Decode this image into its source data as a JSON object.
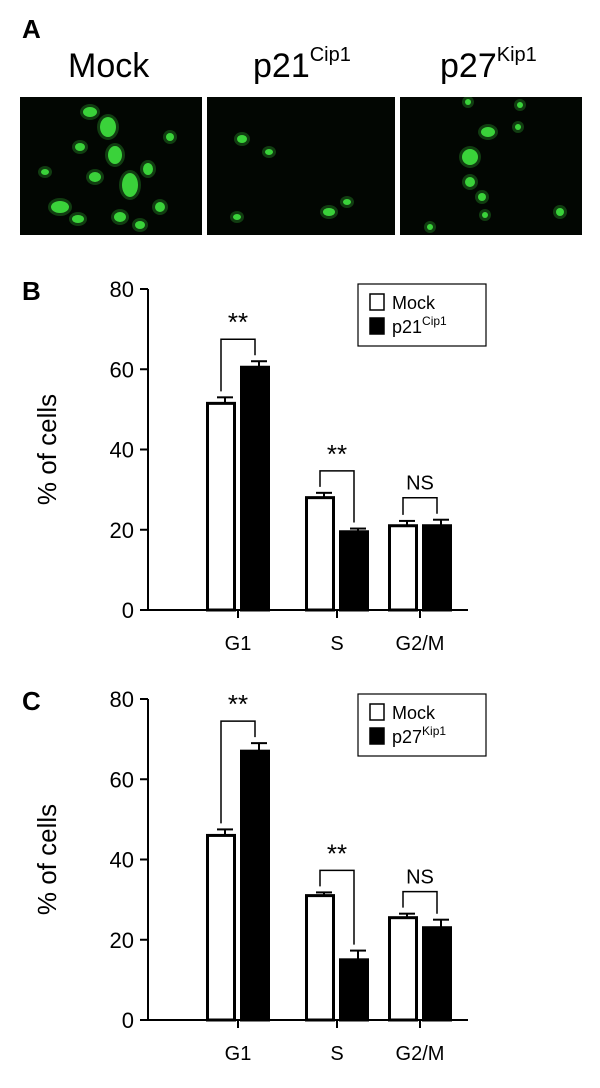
{
  "panel_a": {
    "letter": "A",
    "images": [
      {
        "label_main": "Mock",
        "label_sup": ""
      },
      {
        "label_main": "p21",
        "label_sup": "Cip1"
      },
      {
        "label_main": "p27",
        "label_sup": "Kip1"
      }
    ],
    "cell_color": "#3fe23f"
  },
  "chart_data": [
    {
      "type": "bar",
      "panel": "B",
      "categories": [
        "G1",
        "S",
        "G2/M"
      ],
      "ylabel": "% of cells",
      "ylim": [
        0,
        80
      ],
      "yticks": [
        0,
        20,
        40,
        60,
        80
      ],
      "legend_position": "top-right",
      "series": [
        {
          "name": "Mock",
          "name_sup": "",
          "fill": "#ffffff",
          "values": [
            51.5,
            28,
            21
          ],
          "errors": [
            1.5,
            1.2,
            1.2
          ]
        },
        {
          "name": "p21",
          "name_sup": "Cip1",
          "fill": "#000000",
          "values": [
            60.5,
            19.5,
            21
          ],
          "errors": [
            1.5,
            0.8,
            1.5
          ]
        }
      ],
      "significance": [
        "**",
        "**",
        "NS"
      ]
    },
    {
      "type": "bar",
      "panel": "C",
      "categories": [
        "G1",
        "S",
        "G2/M"
      ],
      "ylabel": "% of cells",
      "ylim": [
        0,
        80
      ],
      "yticks": [
        0,
        20,
        40,
        60,
        80
      ],
      "legend_position": "top-right",
      "series": [
        {
          "name": "Mock",
          "name_sup": "",
          "fill": "#ffffff",
          "values": [
            46,
            31,
            25.5
          ],
          "errors": [
            1.5,
            0.8,
            1
          ]
        },
        {
          "name": "p27",
          "name_sup": "Kip1",
          "fill": "#000000",
          "values": [
            67,
            15,
            23
          ],
          "errors": [
            2,
            2.3,
            2
          ]
        }
      ],
      "significance": [
        "**",
        "**",
        "NS"
      ]
    }
  ]
}
